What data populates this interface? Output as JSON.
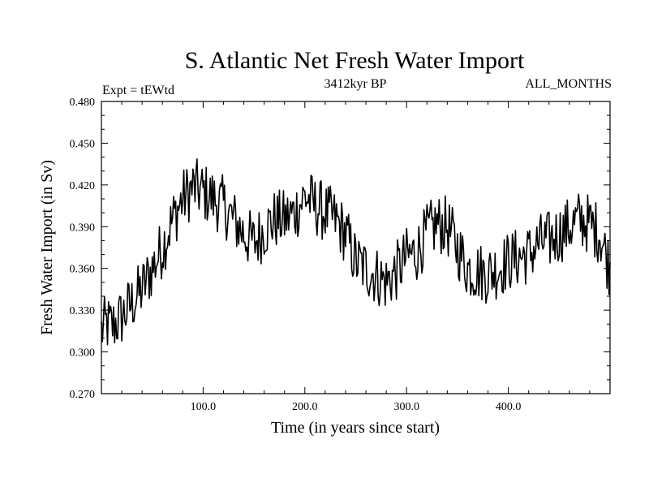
{
  "chart_data": {
    "type": "line",
    "title": "S. Atlantic Net Fresh Water Import",
    "subtitle_left": "Expt = tEWtd",
    "subtitle_center": "3412kyr BP",
    "subtitle_right": "ALL_MONTHS",
    "xlabel": "Time (in years since start)",
    "ylabel": "Fresh Water Import (in Sv)",
    "xlim": [
      0,
      500
    ],
    "ylim": [
      0.27,
      0.48
    ],
    "x_ticks": [
      100,
      200,
      300,
      400
    ],
    "x_tick_labels": [
      "100.0",
      "200.0",
      "300.0",
      "400.0"
    ],
    "y_ticks": [
      0.27,
      0.3,
      0.33,
      0.36,
      0.39,
      0.42,
      0.45,
      0.48
    ],
    "y_tick_labels": [
      "0.270",
      "0.300",
      "0.330",
      "0.360",
      "0.390",
      "0.420",
      "0.450",
      "0.480"
    ],
    "series": [
      {
        "name": "Fresh Water Import",
        "anchors_x": [
          0,
          5,
          10,
          20,
          30,
          40,
          50,
          60,
          70,
          80,
          90,
          100,
          110,
          120,
          130,
          140,
          150,
          160,
          170,
          180,
          190,
          200,
          210,
          220,
          230,
          240,
          250,
          260,
          270,
          280,
          290,
          300,
          310,
          320,
          330,
          340,
          350,
          360,
          370,
          380,
          390,
          400,
          410,
          420,
          430,
          440,
          450,
          460,
          470,
          480,
          490,
          500
        ],
        "anchors_y": [
          0.315,
          0.32,
          0.318,
          0.325,
          0.335,
          0.345,
          0.36,
          0.375,
          0.395,
          0.41,
          0.418,
          0.415,
          0.41,
          0.405,
          0.395,
          0.385,
          0.378,
          0.388,
          0.395,
          0.395,
          0.4,
          0.412,
          0.405,
          0.4,
          0.395,
          0.385,
          0.365,
          0.36,
          0.355,
          0.35,
          0.358,
          0.368,
          0.372,
          0.385,
          0.392,
          0.39,
          0.375,
          0.36,
          0.358,
          0.356,
          0.36,
          0.365,
          0.368,
          0.37,
          0.378,
          0.38,
          0.385,
          0.39,
          0.395,
          0.392,
          0.385,
          0.36
        ],
        "noise_amplitude": 0.022,
        "num_points": 500
      }
    ]
  }
}
